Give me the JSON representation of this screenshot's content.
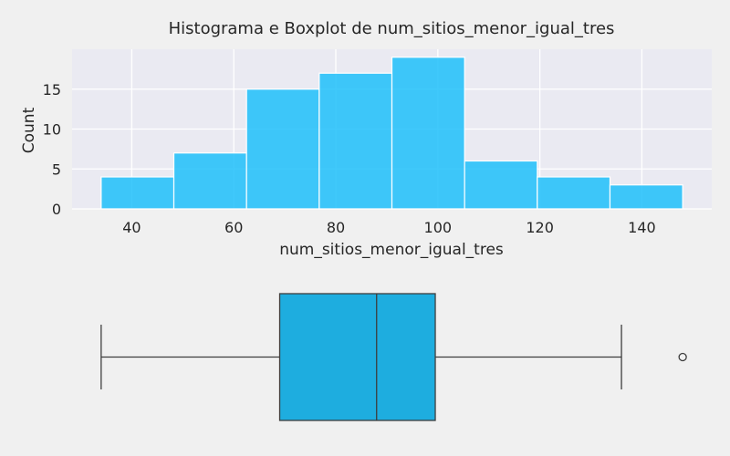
{
  "chart_data": [
    {
      "type": "histogram",
      "title": "Histograma e Boxplot de num_sitios_menor_igual_tres",
      "xlabel": "num_sitios_menor_igual_tres",
      "ylabel": "Count",
      "bin_edges": [
        34,
        48.25,
        62.5,
        76.75,
        91,
        105.25,
        119.5,
        133.75,
        148
      ],
      "counts": [
        4,
        7,
        15,
        17,
        19,
        6,
        4,
        3
      ],
      "xlim": [
        28.3,
        153.7
      ],
      "ylim": [
        0,
        20
      ],
      "xticks": [
        40,
        60,
        80,
        100,
        120,
        140
      ],
      "yticks": [
        0,
        5,
        10,
        15
      ],
      "bar_color": "#1ec0fa",
      "grid": true,
      "plot_background": "#eaeaf2"
    },
    {
      "type": "boxplot",
      "orientation": "horizontal",
      "min": 34,
      "q1": 69,
      "median": 88,
      "q3": 99.5,
      "max": 136,
      "outliers": [
        148
      ],
      "xlim": [
        28.3,
        153.7
      ],
      "box_color": "#1eaddf"
    }
  ]
}
